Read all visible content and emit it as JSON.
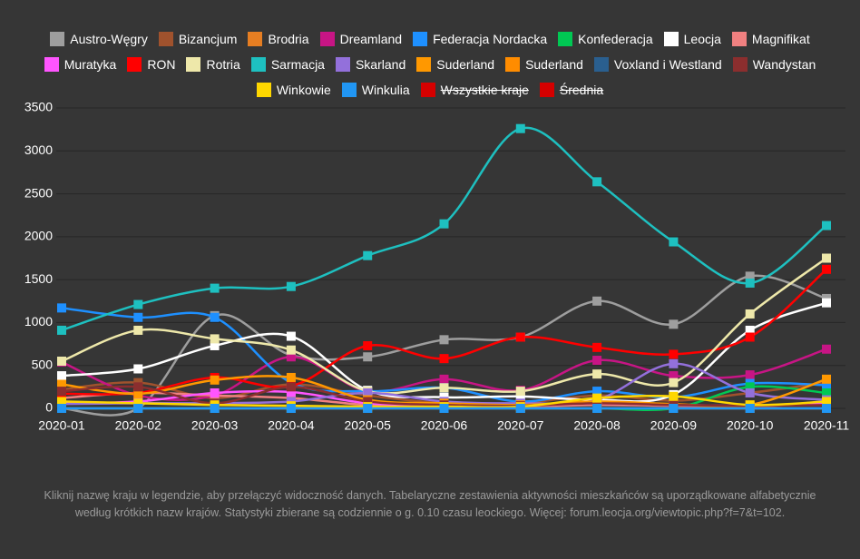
{
  "chart_data": {
    "type": "line",
    "x": [
      "2020-01",
      "2020-02",
      "2020-03",
      "2020-04",
      "2020-05",
      "2020-06",
      "2020-07",
      "2020-08",
      "2020-09",
      "2020-10",
      "2020-11"
    ],
    "ylim": [
      0,
      3500
    ],
    "yticks": [
      0,
      500,
      1000,
      1500,
      2000,
      2500,
      3000,
      3500
    ],
    "grid": true,
    "series": [
      {
        "name": "Austro-Węgry",
        "color": "#9e9e9e",
        "values": [
          0,
          0,
          1080,
          620,
          600,
          800,
          830,
          1250,
          980,
          1540,
          1280
        ]
      },
      {
        "name": "Bizancjum",
        "color": "#a0522d",
        "values": [
          220,
          300,
          120,
          280,
          150,
          60,
          60,
          150,
          90,
          180,
          300
        ]
      },
      {
        "name": "Brodria",
        "color": "#e67e22",
        "values": [
          0,
          0,
          0,
          0,
          0,
          0,
          0,
          0,
          0,
          0,
          0
        ]
      },
      {
        "name": "Dreamland",
        "color": "#c71585",
        "values": [
          540,
          150,
          150,
          600,
          200,
          340,
          210,
          560,
          380,
          390,
          690
        ]
      },
      {
        "name": "Federacja Nordacka",
        "color": "#1e90ff",
        "values": [
          1170,
          1060,
          1060,
          300,
          200,
          240,
          80,
          200,
          130,
          290,
          270
        ]
      },
      {
        "name": "Konfederacja",
        "color": "#00c853",
        "values": [
          0,
          0,
          0,
          0,
          0,
          0,
          0,
          0,
          0,
          250,
          180
        ]
      },
      {
        "name": "Leocja",
        "color": "#ffffff",
        "values": [
          380,
          460,
          730,
          840,
          210,
          130,
          140,
          100,
          160,
          910,
          1230
        ]
      },
      {
        "name": "Magnifikat",
        "color": "#f08080",
        "values": [
          120,
          180,
          150,
          120,
          40,
          30,
          20,
          40,
          30,
          20,
          60
        ]
      },
      {
        "name": "Muratyka",
        "color": "#ff55ff",
        "values": [
          60,
          80,
          180,
          190,
          60,
          40,
          30,
          60,
          40,
          30,
          50
        ]
      },
      {
        "name": "RON",
        "color": "#ff0000",
        "values": [
          170,
          180,
          360,
          260,
          730,
          580,
          830,
          710,
          630,
          830,
          1620
        ]
      },
      {
        "name": "Rotria",
        "color": "#eee8aa",
        "values": [
          550,
          910,
          810,
          680,
          200,
          240,
          200,
          400,
          300,
          1100,
          1750
        ]
      },
      {
        "name": "Sarmacja",
        "color": "#1ec0c0",
        "values": [
          910,
          1210,
          1400,
          1420,
          1780,
          2150,
          3260,
          2640,
          1940,
          1460,
          2130
        ]
      },
      {
        "name": "Skarland",
        "color": "#9370db",
        "values": [
          50,
          60,
          60,
          80,
          180,
          80,
          60,
          100,
          520,
          180,
          100
        ]
      },
      {
        "name": "Suderland",
        "color": "#ff9800",
        "values": [
          280,
          170,
          330,
          360,
          100,
          60,
          40,
          80,
          50,
          40,
          340
        ]
      },
      {
        "name": "Suderland",
        "color": "#ff8c00",
        "values": [
          0,
          0,
          0,
          0,
          0,
          0,
          0,
          0,
          0,
          0,
          0
        ]
      },
      {
        "name": "Voxland i Westland",
        "color": "#2a5f8f",
        "values": [
          0,
          0,
          0,
          0,
          0,
          0,
          0,
          0,
          0,
          0,
          0
        ]
      },
      {
        "name": "Wandystan",
        "color": "#8b2e2e",
        "values": [
          200,
          250,
          60,
          250,
          80,
          40,
          30,
          60,
          40,
          30,
          40
        ]
      },
      {
        "name": "Winkowie",
        "color": "#ffd700",
        "values": [
          80,
          60,
          40,
          30,
          20,
          20,
          20,
          120,
          140,
          40,
          80
        ]
      },
      {
        "name": "Winkulia",
        "color": "#2196f3",
        "values": [
          0,
          0,
          0,
          0,
          0,
          0,
          0,
          0,
          0,
          0,
          0
        ]
      },
      {
        "name": "Wszystkie kraje",
        "color": "#d50000",
        "hidden": true,
        "values": [
          null,
          null,
          null,
          null,
          null,
          null,
          null,
          null,
          null,
          null,
          null
        ]
      },
      {
        "name": "Średnia",
        "color": "#d50000",
        "hidden": true,
        "values": [
          null,
          null,
          null,
          null,
          null,
          null,
          null,
          null,
          null,
          null,
          null
        ]
      }
    ],
    "note": "Kliknij nazwę kraju w legendzie, aby przełączyć widoczność danych. Tabelaryczne zestawienia aktywności mieszkańców są uporządkowane alfabetycznie według krótkich nazw krajów. Statystyki zbierane są codziennie o g. 0.10 czasu leockiego. Więcej: forum.leocja.org/viewtopic.php?f=7&t=102."
  }
}
